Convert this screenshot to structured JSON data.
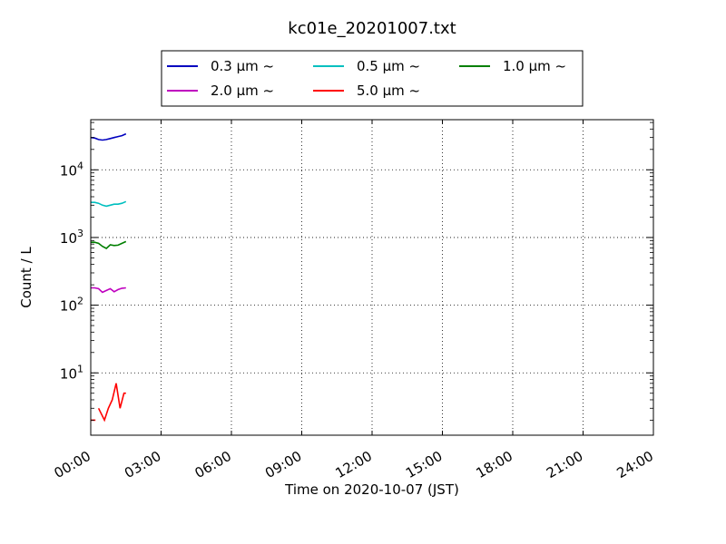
{
  "chart_data": {
    "type": "line",
    "title": "kc01e_20201007.txt",
    "xlabel": "Time on 2020-10-07 (JST)",
    "ylabel": "Count / L",
    "x_range": [
      "2020-10-07T00:00",
      "2020-10-08T00:00"
    ],
    "x_ticks": [
      "00:00",
      "03:00",
      "06:00",
      "09:00",
      "12:00",
      "15:00",
      "18:00",
      "21:00",
      "24:00"
    ],
    "y_scale": "log",
    "ylim": [
      1.2,
      55000
    ],
    "y_ticks": [
      {
        "value": 10,
        "base": "10",
        "exp": "1"
      },
      {
        "value": 100,
        "base": "10",
        "exp": "2"
      },
      {
        "value": 1000,
        "base": "10",
        "exp": "3"
      },
      {
        "value": 10000,
        "base": "10",
        "exp": "4"
      }
    ],
    "grid": true,
    "legend_position": "top-center",
    "series": [
      {
        "name": "0.3 μm ~",
        "color": "#0000bf",
        "x": [
          "00:00",
          "00:10",
          "00:20",
          "00:30",
          "00:40",
          "00:50",
          "01:00",
          "01:10",
          "01:20",
          "01:30"
        ],
        "y": [
          30000,
          29500,
          28000,
          27500,
          28000,
          29000,
          30000,
          31000,
          32000,
          34000
        ]
      },
      {
        "name": "0.5 μm ~",
        "color": "#00bfbf",
        "x": [
          "00:00",
          "00:10",
          "00:20",
          "00:30",
          "00:40",
          "00:50",
          "01:00",
          "01:10",
          "01:20",
          "01:30"
        ],
        "y": [
          3300,
          3300,
          3200,
          3000,
          2900,
          3000,
          3100,
          3100,
          3200,
          3400
        ]
      },
      {
        "name": "1.0 μm ~",
        "color": "#007f00",
        "x": [
          "00:00",
          "00:10",
          "00:20",
          "00:30",
          "00:40",
          "00:50",
          "01:00",
          "01:10",
          "01:20",
          "01:30"
        ],
        "y": [
          850,
          850,
          820,
          740,
          690,
          780,
          760,
          770,
          820,
          870
        ]
      },
      {
        "name": "2.0 μm ~",
        "color": "#bf00bf",
        "x": [
          "00:00",
          "00:10",
          "00:20",
          "00:30",
          "00:40",
          "00:50",
          "01:00",
          "01:10",
          "01:20",
          "01:30"
        ],
        "y": [
          180,
          180,
          175,
          155,
          165,
          175,
          158,
          170,
          178,
          180
        ]
      },
      {
        "name": "5.0 μm ~",
        "color": "#ff0000",
        "segments": [
          {
            "x": [
              "00:00",
              "00:12"
            ],
            "y": [
              2,
              2
            ]
          },
          {
            "x": [
              "00:20",
              "00:35",
              "00:45",
              "00:55",
              "01:05",
              "01:15",
              "01:25",
              "01:30"
            ],
            "y": [
              3,
              2,
              3,
              4,
              7,
              3,
              5,
              5
            ]
          }
        ]
      }
    ]
  }
}
